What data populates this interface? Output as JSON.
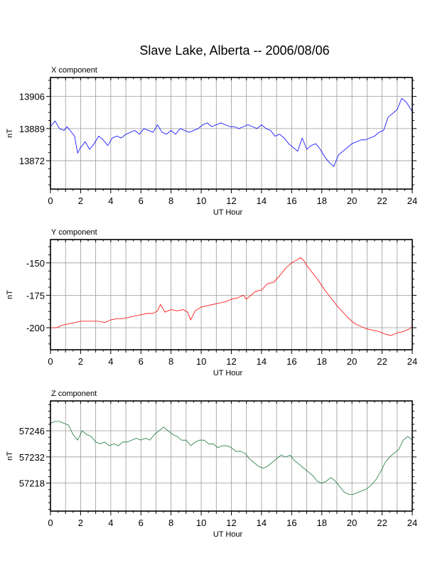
{
  "page_title": "Slave Lake, Alberta -- 2006/08/06",
  "chart_data": [
    {
      "type": "line",
      "title": "X component",
      "xlabel": "UT Hour",
      "ylabel": "nT",
      "xlim": [
        0,
        24
      ],
      "ylim": [
        13857,
        13916
      ],
      "xticks": [
        0,
        2,
        4,
        6,
        8,
        10,
        12,
        14,
        16,
        18,
        20,
        22,
        24
      ],
      "yticks": [
        13872,
        13889,
        13906
      ],
      "grid": true,
      "series": [
        {
          "color": "#0000ff",
          "x": [
            0,
            0.3,
            0.6,
            0.9,
            1.1,
            1.3,
            1.6,
            1.8,
            2.0,
            2.3,
            2.6,
            2.9,
            3.2,
            3.5,
            3.8,
            4.1,
            4.4,
            4.7,
            5.0,
            5.3,
            5.6,
            5.9,
            6.2,
            6.5,
            6.8,
            7.1,
            7.4,
            7.7,
            8.0,
            8.3,
            8.6,
            8.9,
            9.2,
            9.5,
            9.8,
            10.1,
            10.4,
            10.7,
            11.0,
            11.3,
            11.6,
            11.9,
            12.2,
            12.5,
            12.8,
            13.1,
            13.4,
            13.7,
            14.0,
            14.3,
            14.6,
            14.9,
            15.2,
            15.5,
            15.8,
            16.1,
            16.4,
            16.7,
            17.0,
            17.3,
            17.6,
            17.9,
            18.2,
            18.5,
            18.8,
            19.1,
            19.4,
            19.7,
            20.0,
            20.3,
            20.6,
            20.9,
            21.2,
            21.5,
            21.8,
            22.1,
            22.4,
            22.7,
            23.0,
            23.3,
            23.6,
            24.0
          ],
          "y": [
            13890,
            13893,
            13889,
            13888,
            13890,
            13888,
            13885,
            13876,
            13879,
            13882,
            13878,
            13881,
            13885,
            13883,
            13880,
            13884,
            13885,
            13884,
            13886,
            13887,
            13888,
            13886,
            13889,
            13888,
            13887,
            13891,
            13887,
            13886,
            13888,
            13886,
            13889,
            13888,
            13887,
            13888,
            13889,
            13891,
            13892,
            13890,
            13891,
            13892,
            13891,
            13890,
            13890,
            13889,
            13890,
            13891,
            13890,
            13889,
            13891,
            13889,
            13888,
            13885,
            13886,
            13884,
            13881,
            13879,
            13877,
            13884,
            13878,
            13880,
            13881,
            13878,
            13874,
            13871,
            13869,
            13875,
            13877,
            13879,
            13881,
            13882,
            13883,
            13883,
            13884,
            13885,
            13887,
            13888,
            13895,
            13897,
            13899,
            13905,
            13903,
            13898
          ]
        }
      ]
    },
    {
      "type": "line",
      "title": "Y component",
      "xlabel": "UT Hour",
      "ylabel": "nT",
      "xlim": [
        0,
        24
      ],
      "ylim": [
        -217,
        -132
      ],
      "xticks": [
        0,
        2,
        4,
        6,
        8,
        10,
        12,
        14,
        16,
        18,
        20,
        22,
        24
      ],
      "yticks": [
        -200,
        -175,
        -150
      ],
      "grid": true,
      "series": [
        {
          "color": "#ff0000",
          "x": [
            0,
            0.4,
            0.8,
            1.2,
            1.6,
            2.0,
            2.4,
            2.8,
            3.2,
            3.6,
            4.0,
            4.4,
            4.8,
            5.2,
            5.6,
            6.0,
            6.4,
            6.8,
            7.1,
            7.3,
            7.6,
            8.0,
            8.4,
            8.8,
            9.1,
            9.3,
            9.6,
            10.0,
            10.4,
            10.8,
            11.2,
            11.6,
            12.0,
            12.4,
            12.8,
            13.0,
            13.2,
            13.6,
            14.0,
            14.4,
            14.8,
            15.2,
            15.6,
            16.0,
            16.3,
            16.6,
            16.8,
            17.0,
            17.4,
            17.8,
            18.2,
            18.6,
            19.0,
            19.4,
            19.8,
            20.2,
            20.6,
            21.0,
            21.4,
            21.8,
            22.2,
            22.6,
            23.0,
            23.4,
            23.8,
            24.0
          ],
          "y": [
            -200,
            -200,
            -198,
            -197,
            -196,
            -195,
            -195,
            -195,
            -195,
            -196,
            -194,
            -193,
            -193,
            -192,
            -191,
            -190,
            -189,
            -189,
            -187,
            -182,
            -188,
            -186,
            -187,
            -186,
            -188,
            -194,
            -187,
            -184,
            -183,
            -182,
            -181,
            -180,
            -178,
            -177,
            -175,
            -178,
            -176,
            -172,
            -171,
            -166,
            -165,
            -160,
            -154,
            -150,
            -148,
            -146,
            -148,
            -152,
            -158,
            -164,
            -171,
            -177,
            -183,
            -188,
            -193,
            -197,
            -199,
            -201,
            -202,
            -203,
            -205,
            -206,
            -204,
            -203,
            -201,
            -199
          ]
        }
      ]
    },
    {
      "type": "line",
      "title": "Z component",
      "xlabel": "UT Hour",
      "ylabel": "nT",
      "xlim": [
        0,
        24
      ],
      "ylim": [
        57203,
        57262
      ],
      "xticks": [
        0,
        2,
        4,
        6,
        8,
        10,
        12,
        14,
        16,
        18,
        20,
        22,
        24
      ],
      "yticks": [
        57218,
        57232,
        57246
      ],
      "grid": true,
      "series": [
        {
          "color": "#1a7a3a",
          "x": [
            0,
            0.3,
            0.6,
            0.9,
            1.2,
            1.5,
            1.8,
            2.1,
            2.4,
            2.7,
            3.0,
            3.3,
            3.6,
            3.9,
            4.2,
            4.5,
            4.8,
            5.1,
            5.4,
            5.7,
            6.0,
            6.3,
            6.6,
            6.9,
            7.2,
            7.5,
            7.8,
            8.1,
            8.4,
            8.7,
            9.0,
            9.3,
            9.6,
            9.9,
            10.2,
            10.5,
            10.8,
            11.1,
            11.4,
            11.7,
            12.0,
            12.3,
            12.6,
            12.9,
            13.2,
            13.5,
            13.8,
            14.1,
            14.4,
            14.7,
            15.0,
            15.3,
            15.6,
            15.9,
            16.2,
            16.5,
            16.8,
            17.1,
            17.4,
            17.7,
            18.0,
            18.3,
            18.6,
            18.9,
            19.2,
            19.5,
            19.8,
            20.1,
            20.4,
            20.7,
            21.0,
            21.3,
            21.6,
            21.9,
            22.2,
            22.5,
            22.8,
            23.1,
            23.4,
            23.7,
            24.0
          ],
          "y": [
            57250,
            57251,
            57251,
            57250,
            57249,
            57244,
            57241,
            57246,
            57244,
            57243,
            57240,
            57239,
            57240,
            57238,
            57239,
            57238,
            57240,
            57240,
            57241,
            57242,
            57241,
            57242,
            57241,
            57244,
            57246,
            57248,
            57246,
            57244,
            57243,
            57241,
            57241,
            57238,
            57240,
            57241,
            57241,
            57239,
            57239,
            57237,
            57238,
            57238,
            57237,
            57235,
            57235,
            57234,
            57231,
            57229,
            57227,
            57226,
            57227,
            57229,
            57231,
            57233,
            57232,
            57233,
            57230,
            57228,
            57226,
            57224,
            57222,
            57219,
            57218,
            57219,
            57221,
            57219,
            57216,
            57213,
            57212,
            57212,
            57213,
            57214,
            57215,
            57217,
            57220,
            57224,
            57229,
            57232,
            57234,
            57236,
            57241,
            57243,
            57241
          ]
        }
      ]
    }
  ]
}
